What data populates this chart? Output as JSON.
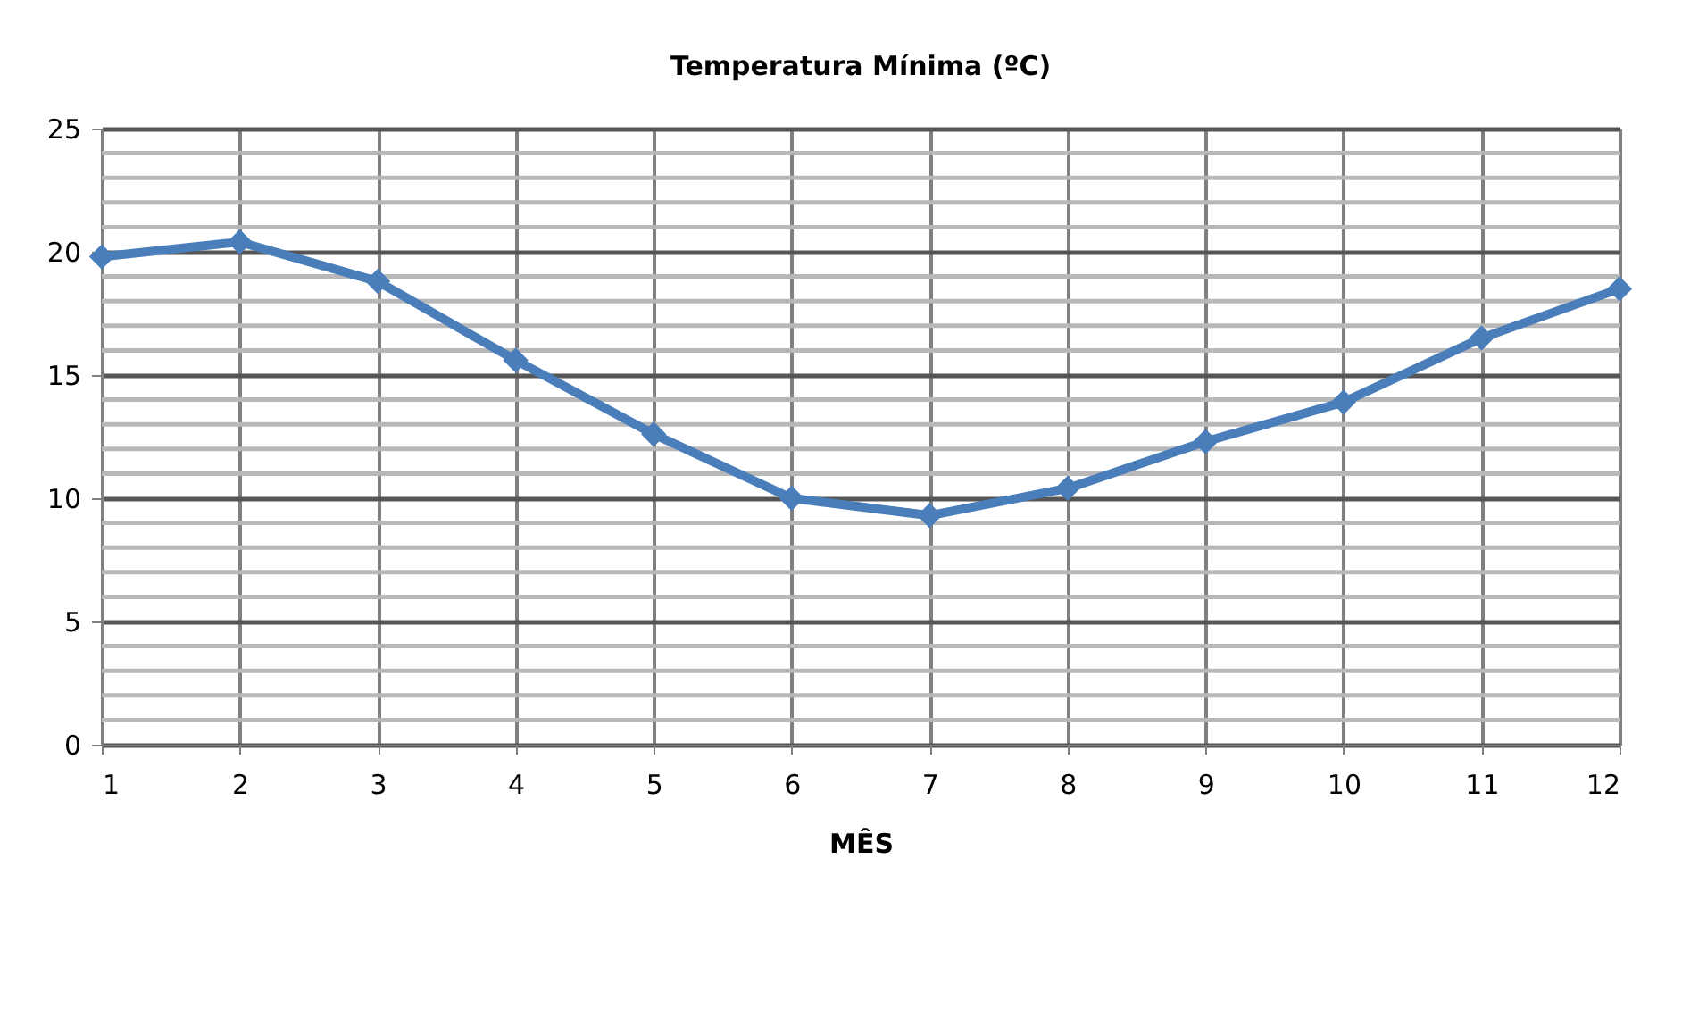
{
  "chart_data": {
    "type": "line",
    "title": "Temperatura Mínima (ºC)",
    "xlabel": "MÊS",
    "x": [
      1,
      2,
      3,
      4,
      5,
      6,
      7,
      8,
      9,
      10,
      11,
      12
    ],
    "series": [
      {
        "color": "#4a7ebb",
        "values": [
          19.8,
          20.4,
          18.8,
          15.6,
          12.6,
          10.0,
          9.3,
          10.4,
          12.3,
          13.9,
          16.5,
          18.5
        ]
      }
    ],
    "xlim": [
      1,
      12
    ],
    "xticks": [
      1,
      2,
      3,
      4,
      5,
      6,
      7,
      8,
      9,
      10,
      11,
      12
    ],
    "ylim": [
      0,
      25
    ],
    "yticks": [
      0,
      {
        "value": 1,
        "label": null
      },
      {
        "value": 2,
        "label": null
      },
      {
        "value": 3,
        "label": null
      },
      {
        "value": 4,
        "label": null
      },
      5,
      {
        "value": 6,
        "label": null
      },
      {
        "value": 7,
        "label": null
      },
      {
        "value": 8,
        "label": null
      },
      {
        "value": 9,
        "label": null
      },
      10,
      {
        "value": 11,
        "label": null
      },
      {
        "value": 12,
        "label": null
      },
      {
        "value": 13,
        "label": null
      },
      {
        "value": 14,
        "label": null
      },
      15,
      {
        "value": 16,
        "label": null
      },
      {
        "value": 17,
        "label": null
      },
      {
        "value": 18,
        "label": null
      },
      {
        "value": 19,
        "label": null
      },
      20,
      {
        "value": 21,
        "label": null
      },
      {
        "value": 22,
        "label": null
      },
      {
        "value": 23,
        "label": null
      },
      {
        "value": 24,
        "label": null
      },
      25
    ],
    "grid": true,
    "legend": false,
    "marker": "diamond",
    "line_style": "solid"
  }
}
